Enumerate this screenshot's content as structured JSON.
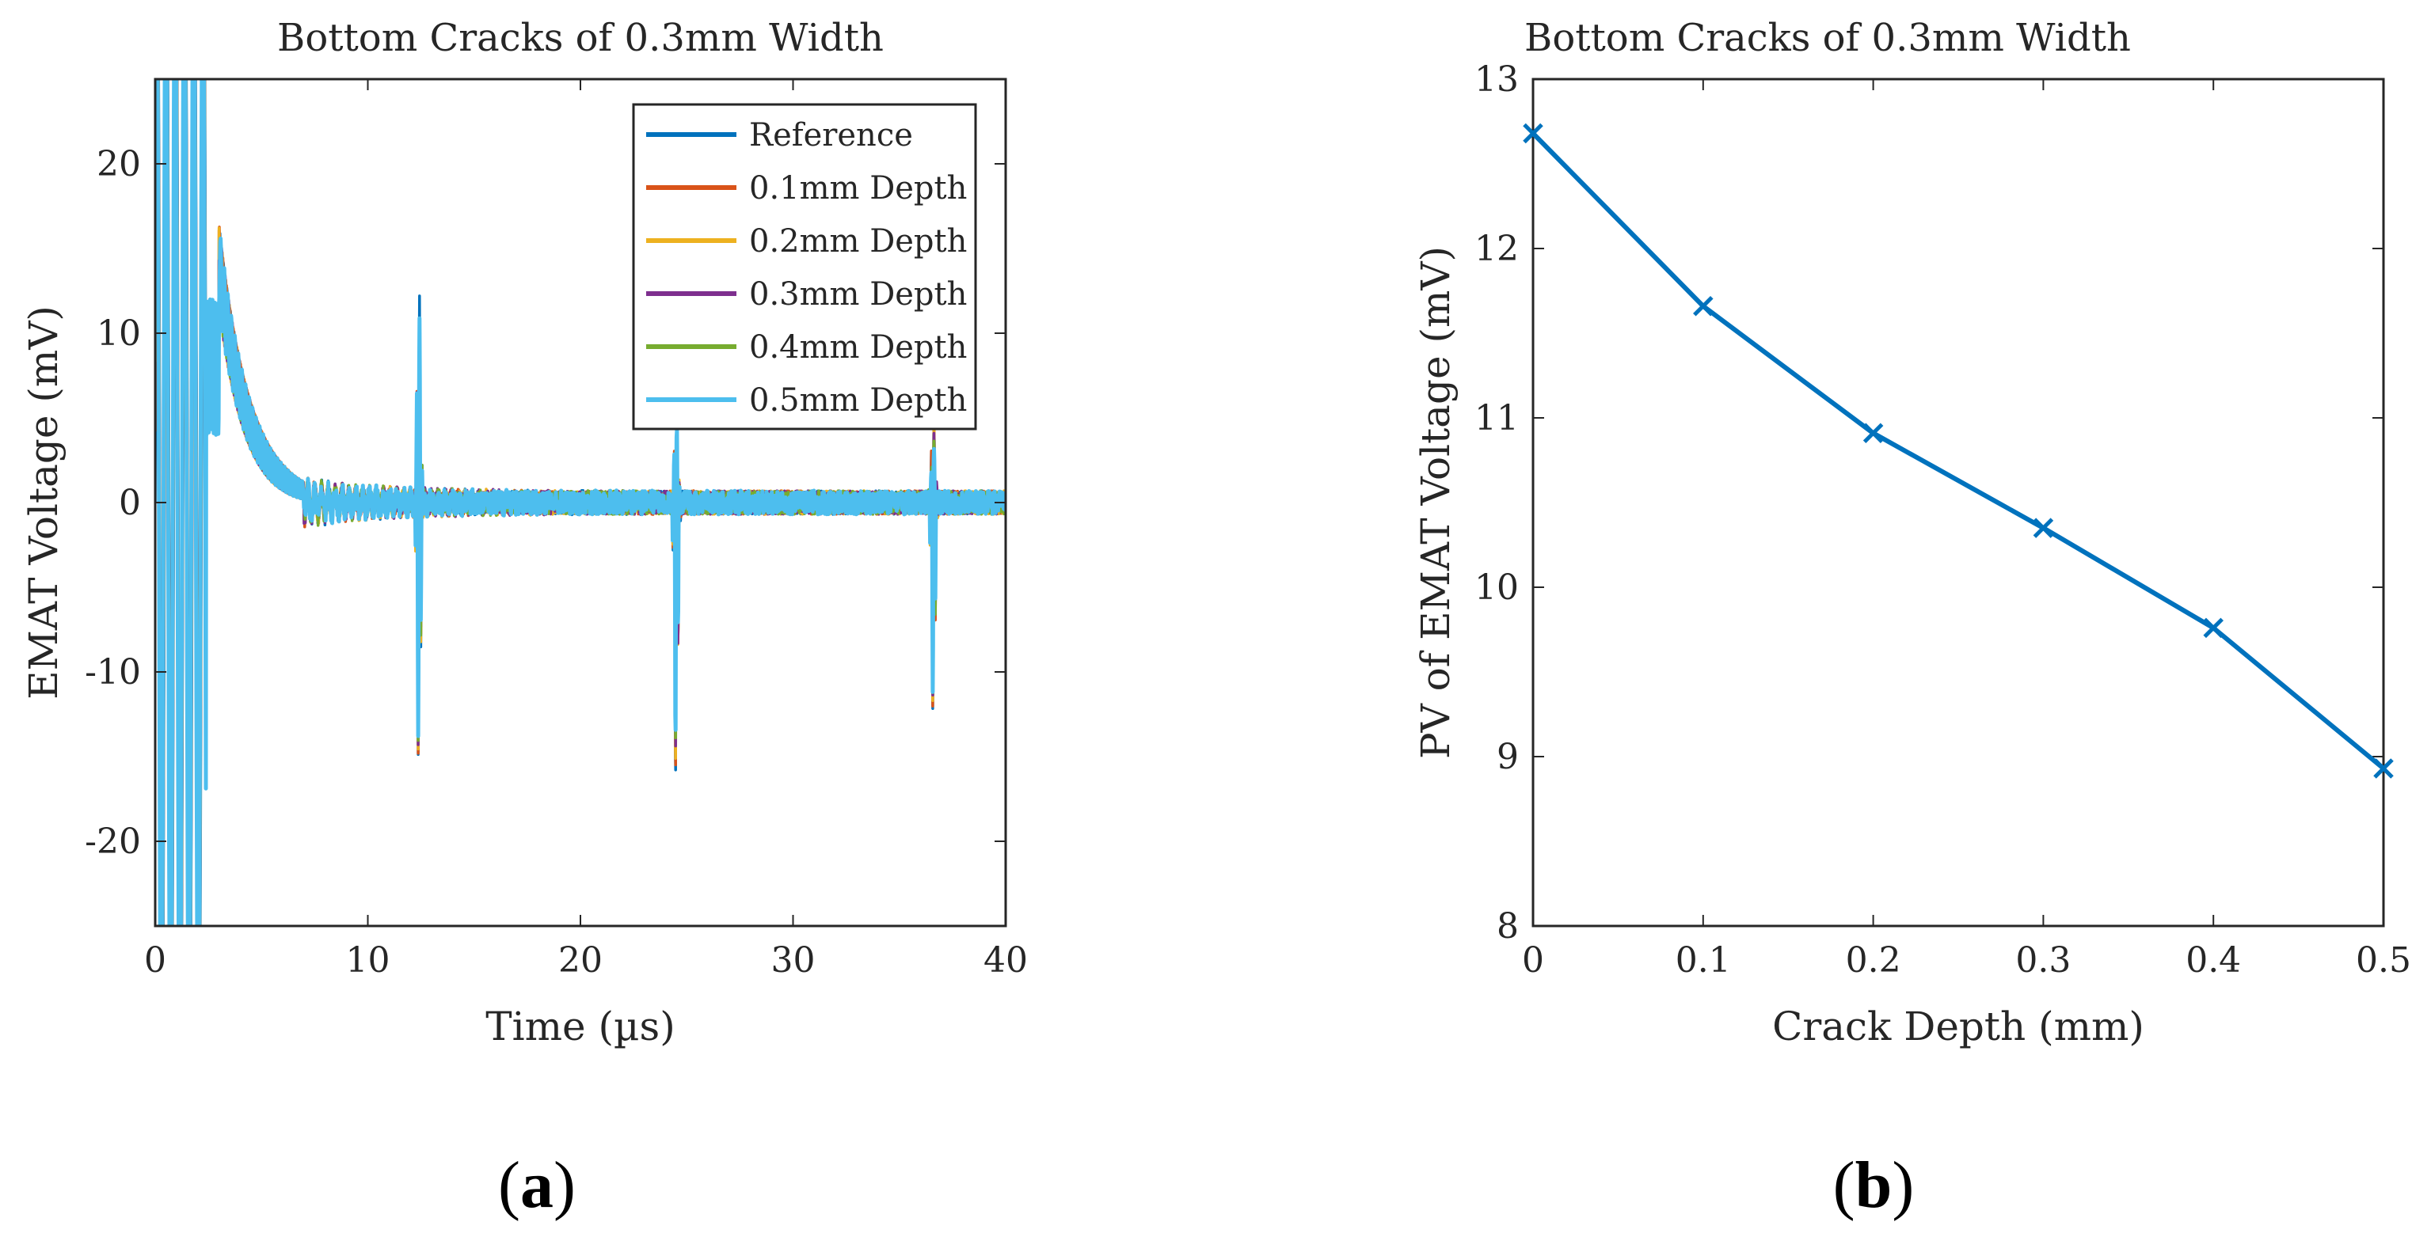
{
  "chart_data": [
    {
      "type": "line",
      "panel_label": {
        "open": "(",
        "letter": "a",
        "close": ")"
      },
      "title": "Bottom Cracks of 0.3mm Width",
      "xlabel": "Time (µs)",
      "ylabel": "EMAT Voltage (mV)",
      "xlim": [
        0,
        40
      ],
      "ylim": [
        -25,
        25
      ],
      "xticks": [
        0,
        10,
        20,
        30,
        40
      ],
      "yticks": [
        -20,
        -10,
        0,
        10,
        20
      ],
      "legend_position": "top-right",
      "series": [
        {
          "name": "Reference",
          "color": "#0072BD"
        },
        {
          "name": "0.1mm Depth",
          "color": "#D95319"
        },
        {
          "name": "0.2mm Depth",
          "color": "#EDB120"
        },
        {
          "name": "0.3mm Depth",
          "color": "#7E2F8E"
        },
        {
          "name": "0.4mm Depth",
          "color": "#77AC30"
        },
        {
          "name": "0.5mm Depth",
          "color": "#4DBEEE"
        }
      ],
      "echo_peaks": [
        {
          "t": 12.4,
          "peak_mV": [
            12.5,
            12.2,
            12.0,
            11.8,
            11.6,
            11.4
          ],
          "trough_mV": [
            -15.8,
            -15.8,
            -15.6,
            -15.4,
            -15.2,
            -15.0
          ]
        },
        {
          "t": 24.5,
          "peak_mV": [
            5.0,
            4.9,
            4.8,
            4.7,
            4.6,
            4.5
          ],
          "trough_mV": [
            -17.5,
            -17.2,
            -16.8,
            -16.0,
            -15.5,
            -15.0
          ]
        },
        {
          "t": 36.6,
          "peak_mV": [
            5.0,
            4.8,
            4.6,
            4.4,
            4.2,
            4.0
          ],
          "trough_mV": [
            -13.8,
            -13.5,
            -13.0,
            -12.5,
            -12.2,
            -12.0
          ]
        }
      ]
    },
    {
      "type": "line",
      "panel_label": {
        "open": "(",
        "letter": "b",
        "close": ")"
      },
      "title": "Bottom Cracks of 0.3mm Width",
      "xlabel": "Crack Depth (mm)",
      "ylabel": "PV of EMAT Voltage (mV)",
      "xlim": [
        0,
        0.5
      ],
      "ylim": [
        8,
        13
      ],
      "xticks": [
        0,
        0.1,
        0.2,
        0.3,
        0.4,
        0.5
      ],
      "yticks": [
        8,
        9,
        10,
        11,
        12,
        13
      ],
      "marker": "x",
      "color": "#0072BD",
      "x": [
        0,
        0.1,
        0.2,
        0.3,
        0.4,
        0.5
      ],
      "y": [
        12.68,
        11.66,
        10.91,
        10.35,
        9.76,
        8.93
      ]
    }
  ]
}
